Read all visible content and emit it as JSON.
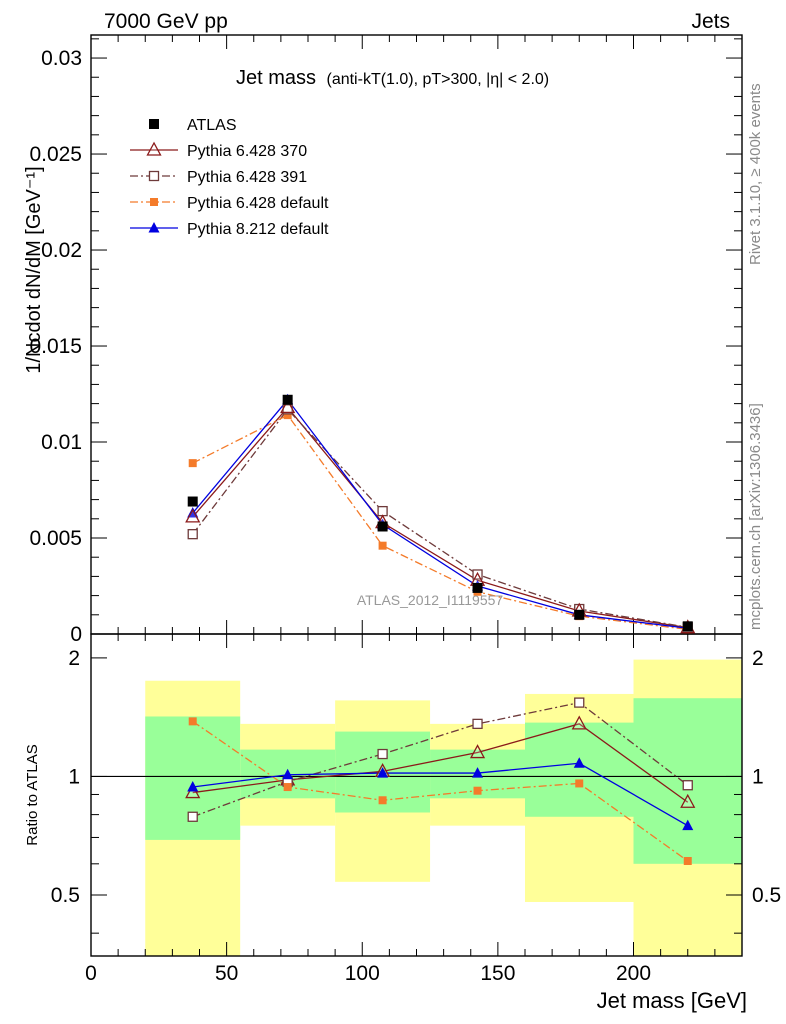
{
  "header": {
    "left": "7000 GeV pp",
    "right": "Jets"
  },
  "side": {
    "rivet": "Rivet 3.1.10, ≥ 400k events",
    "mcplots": "mcplots.cern.ch [arXiv:1306.3436]"
  },
  "chart_data": [
    {
      "type": "line",
      "title": "Jet mass (anti-kT(1.0), pT>300, |η| < 2.0)",
      "title_main": "Jet mass",
      "title_detail": "(anti-kT(1.0), pT>300, |η| < 2.0)",
      "ylabel": "1/Ncdot dN/dM [GeV⁻¹]",
      "watermark": "ATLAS_2012_I1119557",
      "xlim": [
        0,
        240
      ],
      "ylim": [
        0,
        0.0312
      ],
      "y_ticks": [
        {
          "v": 0.005,
          "label": "0.005"
        },
        {
          "v": 0.01,
          "label": "0.01"
        },
        {
          "v": 0.015,
          "label": "0.015"
        },
        {
          "v": 0.02,
          "label": "0.02"
        },
        {
          "v": 0.025,
          "label": "0.025"
        },
        {
          "v": 0.03,
          "label": "0.03"
        },
        {
          "v": 0,
          "label": "0"
        }
      ],
      "x": [
        37.5,
        72.5,
        107.5,
        142.5,
        180,
        220
      ],
      "series": [
        {
          "name": "ATLAS",
          "color": "#000000",
          "marker": "square-filled",
          "dash": "none",
          "values": [
            0.0069,
            0.0122,
            0.0056,
            0.0024,
            0.001,
            0.0004
          ]
        },
        {
          "name": "Pythia 6.428 370",
          "color": "#8b1a1a",
          "marker": "triangle-open",
          "dash": "solid",
          "values": [
            0.0061,
            0.0118,
            0.0058,
            0.0028,
            0.0012,
            0.00033
          ]
        },
        {
          "name": "Pythia 6.428 391",
          "color": "#6e3a3a",
          "marker": "square-open",
          "dash": "dashdot",
          "values": [
            0.0052,
            0.0117,
            0.0064,
            0.0031,
            0.0013,
            0.00035
          ]
        },
        {
          "name": "Pythia 6.428 default",
          "color": "#f47b2a",
          "marker": "square-filled-small",
          "dash": "dashdot",
          "values": [
            0.0089,
            0.0114,
            0.0046,
            0.0022,
            0.00093,
            0.00024
          ]
        },
        {
          "name": "Pythia 8.212 default",
          "color": "#0000e0",
          "marker": "triangle-filled",
          "dash": "solid",
          "values": [
            0.0063,
            0.0122,
            0.0057,
            0.0025,
            0.001,
            0.0003
          ]
        }
      ]
    },
    {
      "type": "line",
      "ylabel": "Ratio to ATLAS",
      "xlabel": "Jet mass [GeV]",
      "xlim": [
        0,
        240
      ],
      "ylim": [
        0.35,
        2.3
      ],
      "y_scale": "log",
      "x_ticks": [
        {
          "v": 0,
          "label": "0"
        },
        {
          "v": 50,
          "label": "50"
        },
        {
          "v": 100,
          "label": "100"
        },
        {
          "v": 150,
          "label": "150"
        },
        {
          "v": 200,
          "label": "200"
        }
      ],
      "y_ticks": [
        {
          "v": 0.5,
          "label": "0.5"
        },
        {
          "v": 1,
          "label": "1"
        },
        {
          "v": 2,
          "label": "2"
        }
      ],
      "bands": [
        {
          "x0": 20,
          "x1": 55,
          "yellow": [
            0.35,
            1.75
          ],
          "green": [
            0.69,
            1.42
          ]
        },
        {
          "x0": 55,
          "x1": 90,
          "yellow": [
            0.75,
            1.36
          ],
          "green": [
            0.88,
            1.17
          ]
        },
        {
          "x0": 90,
          "x1": 125,
          "yellow": [
            0.54,
            1.56
          ],
          "green": [
            0.81,
            1.3
          ]
        },
        {
          "x0": 125,
          "x1": 160,
          "yellow": [
            0.75,
            1.36
          ],
          "green": [
            0.88,
            1.17
          ]
        },
        {
          "x0": 160,
          "x1": 200,
          "yellow": [
            0.48,
            1.62
          ],
          "green": [
            0.79,
            1.37
          ]
        },
        {
          "x0": 200,
          "x1": 240,
          "yellow": [
            0.35,
            1.98
          ],
          "green": [
            0.6,
            1.58
          ]
        }
      ],
      "x": [
        37.5,
        72.5,
        107.5,
        142.5,
        180,
        220
      ],
      "series": [
        {
          "name": "Pythia 6.428 370",
          "color": "#8b1a1a",
          "marker": "triangle-open",
          "dash": "solid",
          "values": [
            0.91,
            0.98,
            1.03,
            1.15,
            1.36,
            0.86
          ]
        },
        {
          "name": "Pythia 6.428 391",
          "color": "#6e3a3a",
          "marker": "square-open",
          "dash": "dashdot",
          "values": [
            0.79,
            0.97,
            1.14,
            1.36,
            1.54,
            0.95
          ]
        },
        {
          "name": "Pythia 6.428 default",
          "color": "#f47b2a",
          "marker": "square-filled-small",
          "dash": "dashdot",
          "values": [
            1.38,
            0.94,
            0.87,
            0.92,
            0.96,
            0.61
          ]
        },
        {
          "name": "Pythia 8.212 default",
          "color": "#0000e0",
          "marker": "triangle-filled",
          "dash": "solid",
          "values": [
            0.94,
            1.01,
            1.02,
            1.02,
            1.08,
            0.75
          ]
        }
      ]
    }
  ]
}
